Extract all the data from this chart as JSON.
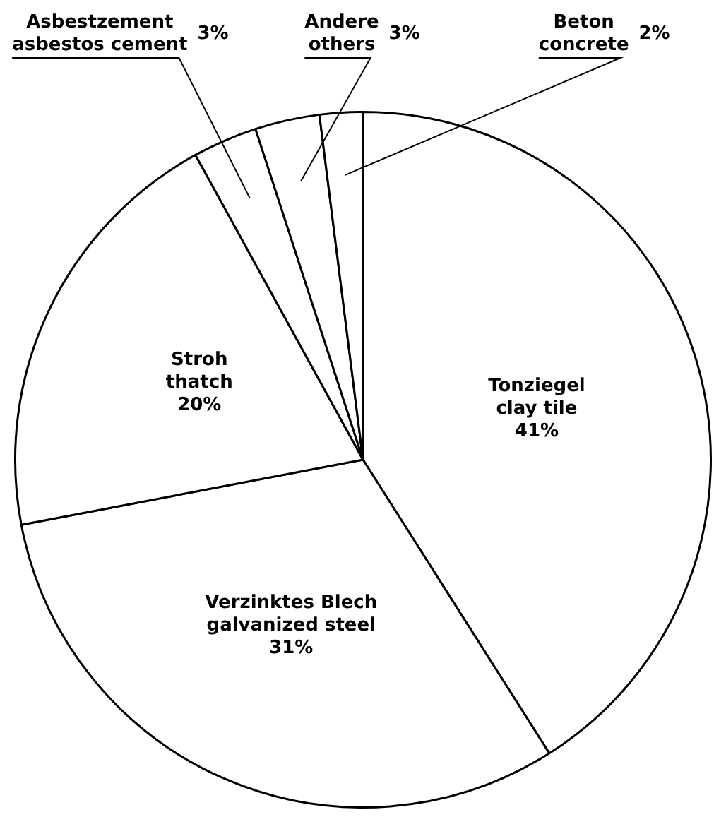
{
  "chart_data": {
    "type": "pie",
    "categories": [
      "Tonziegel\nclay tile",
      "Verzinktes Blech\ngalvanized steel",
      "Stroh\nthatch",
      "Asbestzement\nasbestos cement",
      "Andere\nothers",
      "Beton\nconcrete"
    ],
    "values": [
      41,
      31,
      20,
      3,
      3,
      2
    ],
    "colors": [
      "#ffffff",
      "#ffffff",
      "#ffffff",
      "#ffffff",
      "#ffffff",
      "#ffffff"
    ],
    "value_labels": [
      "41%",
      "31%",
      "20%",
      "3%",
      "3%",
      "2%"
    ],
    "legend": false
  }
}
